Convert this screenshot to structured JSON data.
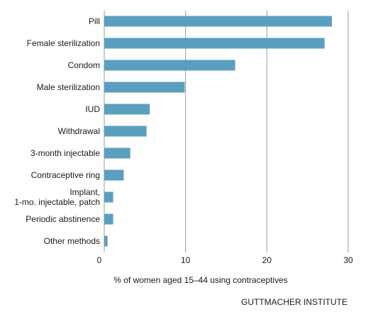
{
  "chart_data": {
    "type": "bar",
    "orientation": "horizontal",
    "categories": [
      "Pill",
      "Female sterilization",
      "Condom",
      "Male sterilization",
      "IUD",
      "Withdrawal",
      "3-month injectable",
      "Contraceptive ring",
      [
        "Implant,",
        "1-mo. injectable, patch"
      ],
      "Periodic abstinence",
      "Other methods"
    ],
    "values": [
      28.0,
      27.1,
      16.1,
      9.9,
      5.6,
      5.2,
      3.2,
      2.4,
      1.1,
      1.1,
      0.4
    ],
    "xlim": [
      0,
      30
    ],
    "xticks": [
      "0",
      "10",
      "20",
      "30"
    ],
    "xlabel": "% of women aged 15–44 using contraceptives",
    "ylabel": "",
    "grid": "vertical",
    "bar_color": "#5b9fc0",
    "grid_color": "#9a9a9a"
  },
  "credit": "GUTTMACHER INSTITUTE"
}
